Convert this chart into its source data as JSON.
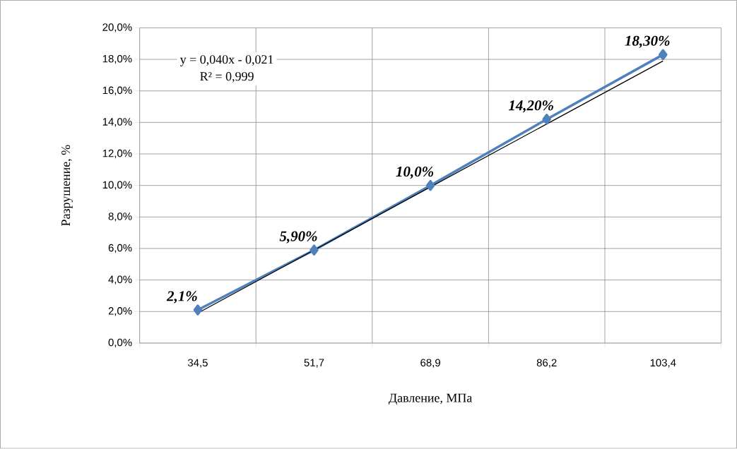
{
  "chart_data": {
    "type": "line",
    "xlabel": "Давление, МПа",
    "ylabel": "Разрушение, %",
    "categories": [
      "34,5",
      "51,7",
      "68,9",
      "86,2",
      "103,4"
    ],
    "series": [
      {
        "color": "#4f81bd",
        "values": [
          2.1,
          5.9,
          10.0,
          14.2,
          18.3
        ],
        "marker": "diamond",
        "value_labels": [
          "2,1%",
          "5,90%",
          "10,0%",
          "14,20%",
          "18,30%"
        ]
      },
      {
        "type": "line",
        "color": "#000000",
        "values": [
          1.9,
          5.9,
          9.9,
          13.9,
          17.9
        ],
        "marker": "none"
      }
    ],
    "ylim": [
      0,
      20
    ],
    "yticks": [
      {
        "value": 0,
        "label": "0,0%"
      },
      {
        "value": 2,
        "label": "2,0%"
      },
      {
        "value": 4,
        "label": "4,0%"
      },
      {
        "value": 6,
        "label": "6,0%"
      },
      {
        "value": 8,
        "label": "8,0%"
      },
      {
        "value": 10,
        "label": "10,0%"
      },
      {
        "value": 12,
        "label": "12,0%"
      },
      {
        "value": 14,
        "label": "14,0%"
      },
      {
        "value": 16,
        "label": "16,0%"
      },
      {
        "value": 18,
        "label": "18,0%"
      },
      {
        "value": 20,
        "label": "20,0%"
      }
    ],
    "grid": true,
    "annotations": [
      "y = 0,040x - 0,021",
      "R² = 0,999"
    ]
  }
}
